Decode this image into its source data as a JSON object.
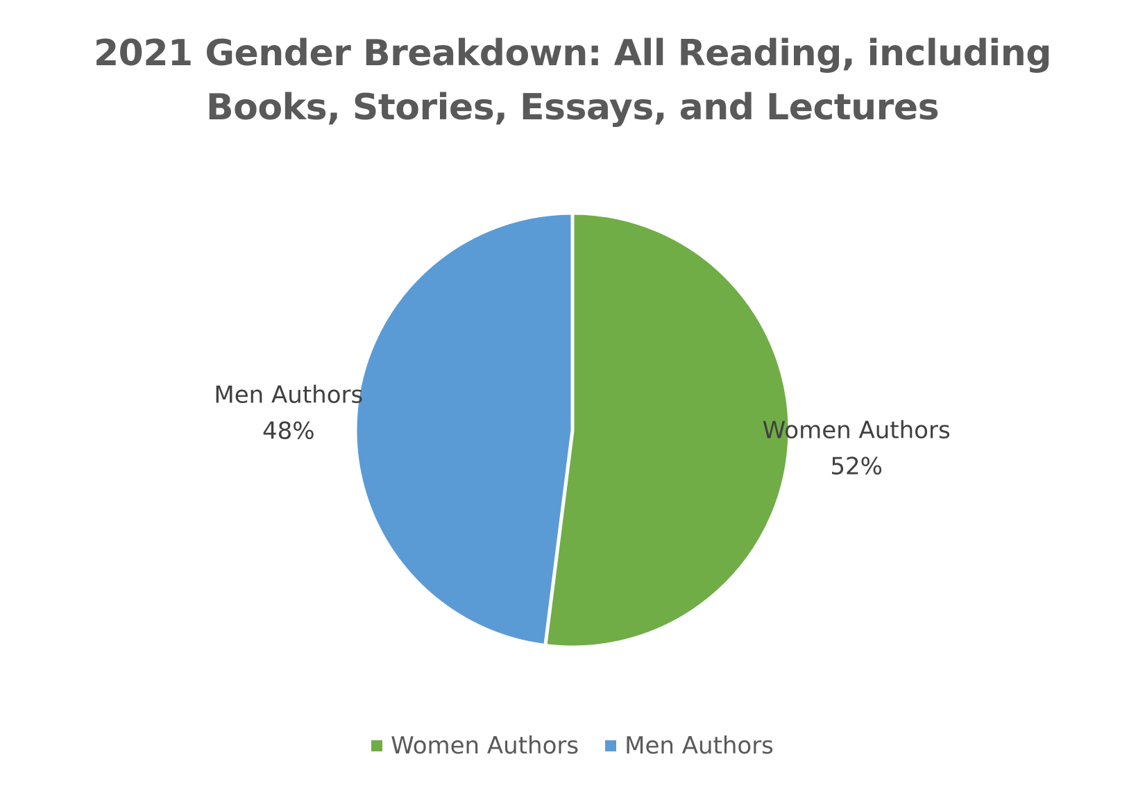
{
  "chart_data": {
    "type": "pie",
    "title_lines": [
      "2021 Gender Breakdown: All Reading, including",
      "Books, Stories, Essays, and Lectures"
    ],
    "slices": [
      {
        "label": "Women Authors",
        "value": 52,
        "percent_label": "52%",
        "color": "#70AD47"
      },
      {
        "label": "Men Authors",
        "value": 48,
        "percent_label": "48%",
        "color": "#5B9BD5"
      }
    ],
    "start_angle_deg": 0,
    "direction": "clockwise",
    "data_labels": "outside, category name and percentage",
    "legend": {
      "position": "bottom",
      "entries": [
        "Women Authors",
        "Men Authors"
      ]
    }
  }
}
